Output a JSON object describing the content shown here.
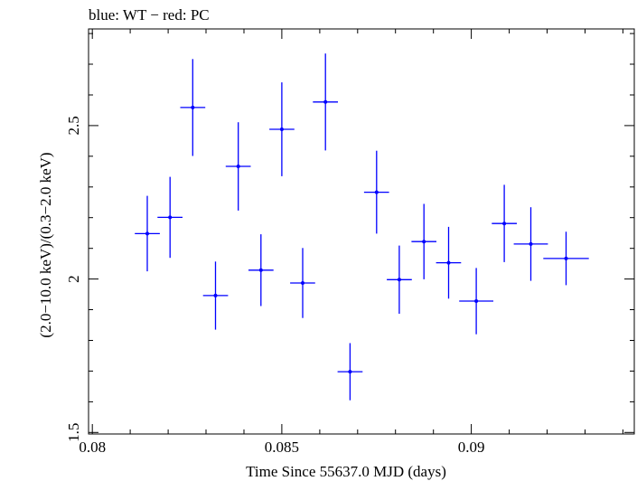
{
  "chart_data": {
    "type": "scatter",
    "title": "blue: WT − red: PC",
    "xlabel": "Time Since 55637.0 MJD (days)",
    "ylabel": "(2.0−10.0 keV)/(0.3−2.0 keV)",
    "xlim": [
      0.0799,
      0.0943
    ],
    "ylim": [
      1.495,
      2.815
    ],
    "x_ticks": [
      {
        "value": 0.08,
        "label": "0.08"
      },
      {
        "value": 0.085,
        "label": "0.085"
      },
      {
        "value": 0.09,
        "label": "0.09"
      }
    ],
    "y_ticks": [
      {
        "value": 1.5,
        "label": "1.5"
      },
      {
        "value": 2.0,
        "label": "2"
      },
      {
        "value": 2.5,
        "label": "2.5"
      }
    ],
    "grid": false,
    "series": [
      {
        "color": "#0000ff",
        "points": [
          {
            "x": 0.08145,
            "y": 2.148,
            "xerr": 0.00033,
            "yerr": 0.123
          },
          {
            "x": 0.08205,
            "y": 2.201,
            "xerr": 0.00033,
            "yerr": 0.132
          },
          {
            "x": 0.08265,
            "y": 2.559,
            "xerr": 0.00033,
            "yerr": 0.158
          },
          {
            "x": 0.08325,
            "y": 1.946,
            "xerr": 0.00033,
            "yerr": 0.111
          },
          {
            "x": 0.08385,
            "y": 2.367,
            "xerr": 0.00033,
            "yerr": 0.144
          },
          {
            "x": 0.08445,
            "y": 2.029,
            "xerr": 0.00033,
            "yerr": 0.117
          },
          {
            "x": 0.085,
            "y": 2.488,
            "xerr": 0.00033,
            "yerr": 0.153
          },
          {
            "x": 0.08555,
            "y": 1.987,
            "xerr": 0.00033,
            "yerr": 0.114
          },
          {
            "x": 0.08615,
            "y": 2.577,
            "xerr": 0.00033,
            "yerr": 0.158
          },
          {
            "x": 0.0868,
            "y": 1.698,
            "xerr": 0.00033,
            "yerr": 0.093
          },
          {
            "x": 0.0875,
            "y": 2.283,
            "xerr": 0.00033,
            "yerr": 0.135
          },
          {
            "x": 0.0881,
            "y": 1.998,
            "xerr": 0.00033,
            "yerr": 0.111
          },
          {
            "x": 0.08875,
            "y": 2.122,
            "xerr": 0.00033,
            "yerr": 0.123
          },
          {
            "x": 0.0894,
            "y": 2.053,
            "xerr": 0.00033,
            "yerr": 0.117
          },
          {
            "x": 0.09013,
            "y": 1.928,
            "xerr": 0.00045,
            "yerr": 0.108
          },
          {
            "x": 0.09087,
            "y": 2.181,
            "xerr": 0.00033,
            "yerr": 0.126
          },
          {
            "x": 0.09157,
            "y": 2.114,
            "xerr": 0.00045,
            "yerr": 0.12
          },
          {
            "x": 0.0925,
            "y": 2.067,
            "xerr": 0.0006,
            "yerr": 0.087
          }
        ]
      }
    ]
  }
}
